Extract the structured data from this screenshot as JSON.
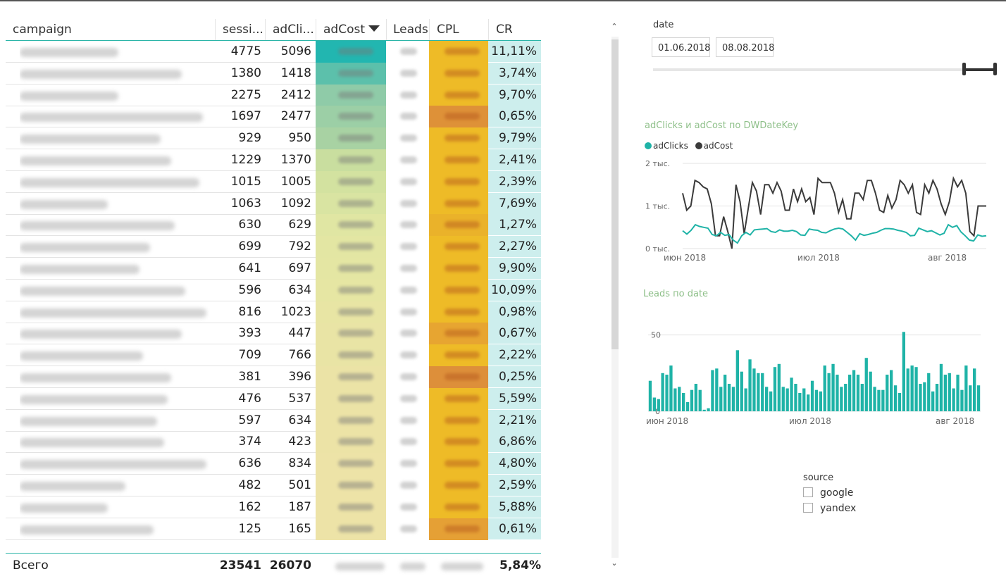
{
  "table": {
    "headers": {
      "campaign": "campaign",
      "sessions": "sessi...",
      "adclicks": "adCli...",
      "adcost": "adCost",
      "leads": "Leads",
      "cpl": "CPL",
      "cr": "CR"
    },
    "rows": [
      {
        "sessions": "4775",
        "adclicks": "5096",
        "cr": "11,11%",
        "cost_color": "#22b6b0",
        "cpl_color": "#eebb27"
      },
      {
        "sessions": "1380",
        "adclicks": "1418",
        "cr": "3,74%",
        "cost_color": "#5cc0ab",
        "cpl_color": "#eebb27"
      },
      {
        "sessions": "2275",
        "adclicks": "2412",
        "cr": "9,70%",
        "cost_color": "#8fcba8",
        "cpl_color": "#eebb27"
      },
      {
        "sessions": "1697",
        "adclicks": "2477",
        "cr": "0,65%",
        "cost_color": "#9ccfa6",
        "cpl_color": "#de9138"
      },
      {
        "sessions": "929",
        "adclicks": "950",
        "cr": "9,79%",
        "cost_color": "#a8d2a3",
        "cpl_color": "#eebb27"
      },
      {
        "sessions": "1229",
        "adclicks": "1370",
        "cr": "2,41%",
        "cost_color": "#c9de9f",
        "cpl_color": "#eebb27"
      },
      {
        "sessions": "1015",
        "adclicks": "1005",
        "cr": "2,39%",
        "cost_color": "#d3e2a0",
        "cpl_color": "#eebb27"
      },
      {
        "sessions": "1063",
        "adclicks": "1092",
        "cr": "7,69%",
        "cost_color": "#d9e4a2",
        "cpl_color": "#eebb27"
      },
      {
        "sessions": "630",
        "adclicks": "629",
        "cr": "1,27%",
        "cost_color": "#e0e6a3",
        "cpl_color": "#eab22a"
      },
      {
        "sessions": "699",
        "adclicks": "792",
        "cr": "2,27%",
        "cost_color": "#e3e6a3",
        "cpl_color": "#eebb27"
      },
      {
        "sessions": "641",
        "adclicks": "697",
        "cr": "9,90%",
        "cost_color": "#e4e6a3",
        "cpl_color": "#eebb27"
      },
      {
        "sessions": "596",
        "adclicks": "634",
        "cr": "10,09%",
        "cost_color": "#e6e6a3",
        "cpl_color": "#eebb27"
      },
      {
        "sessions": "816",
        "adclicks": "1023",
        "cr": "0,98%",
        "cost_color": "#e8e5a4",
        "cpl_color": "#eebb27"
      },
      {
        "sessions": "393",
        "adclicks": "447",
        "cr": "0,67%",
        "cost_color": "#e9e4a5",
        "cpl_color": "#e7a531"
      },
      {
        "sessions": "709",
        "adclicks": "766",
        "cr": "2,22%",
        "cost_color": "#e9e4a5",
        "cpl_color": "#eebb27"
      },
      {
        "sessions": "381",
        "adclicks": "396",
        "cr": "0,25%",
        "cost_color": "#ebe3a6",
        "cpl_color": "#dd8f3a"
      },
      {
        "sessions": "476",
        "adclicks": "537",
        "cr": "5,59%",
        "cost_color": "#ebe3a6",
        "cpl_color": "#eebb27"
      },
      {
        "sessions": "597",
        "adclicks": "634",
        "cr": "2,21%",
        "cost_color": "#ece3a6",
        "cpl_color": "#eebb27"
      },
      {
        "sessions": "374",
        "adclicks": "423",
        "cr": "6,86%",
        "cost_color": "#ece3a6",
        "cpl_color": "#eebb27"
      },
      {
        "sessions": "636",
        "adclicks": "834",
        "cr": "4,80%",
        "cost_color": "#ede3a7",
        "cpl_color": "#eebb27"
      },
      {
        "sessions": "482",
        "adclicks": "501",
        "cr": "2,59%",
        "cost_color": "#ede3a7",
        "cpl_color": "#eebb27"
      },
      {
        "sessions": "162",
        "adclicks": "187",
        "cr": "5,88%",
        "cost_color": "#ede3a7",
        "cpl_color": "#eebb27"
      },
      {
        "sessions": "125",
        "adclicks": "165",
        "cr": "0,61%",
        "cost_color": "#ede3a7",
        "cpl_color": "#e5a035"
      }
    ],
    "total": {
      "label": "Всего",
      "sessions": "23541",
      "adclicks": "26070",
      "cr": "5,84%"
    }
  },
  "date_slicer": {
    "label": "date",
    "start": "01.06.2018",
    "end": "08.08.2018"
  },
  "source_slicer": {
    "label": "source",
    "options": [
      {
        "label": "google",
        "checked": false
      },
      {
        "label": "yandex",
        "checked": false
      }
    ]
  },
  "colors": {
    "teal": "#1fb3a7",
    "dark": "#3b3b3b",
    "title_green": "#8fc08a",
    "cr_bg": "#cdeeed"
  },
  "chart_data": [
    {
      "type": "line",
      "title": "adClicks и adCost по DWDateKey",
      "x_ticks": [
        "июн 2018",
        "июл 2018",
        "авг 2018"
      ],
      "y_ticks": [
        "0 тыс.",
        "1 тыс.",
        "2 тыс."
      ],
      "ylim": [
        0,
        2000
      ],
      "grid": true,
      "legend": "top-left",
      "series": [
        {
          "name": "adClicks",
          "color": "#1fb3a7",
          "values": [
            420,
            340,
            430,
            560,
            520,
            500,
            480,
            330,
            300,
            380,
            310,
            330,
            200,
            130,
            300,
            380,
            320,
            440,
            450,
            460,
            470,
            400,
            380,
            440,
            410,
            410,
            430,
            400,
            320,
            310,
            460,
            440,
            430,
            380,
            370,
            420,
            460,
            480,
            460,
            380,
            300,
            200,
            350,
            310,
            330,
            360,
            380,
            430,
            470,
            470,
            460,
            430,
            410,
            380,
            300,
            310,
            480,
            440,
            400,
            420,
            370,
            320,
            360,
            560,
            500,
            540,
            390,
            300,
            200,
            180,
            320,
            290,
            300
          ]
        },
        {
          "name": "adCost",
          "color": "#3b3b3b",
          "values": [
            1300,
            900,
            1000,
            1600,
            1550,
            1450,
            1400,
            1050,
            300,
            300,
            750,
            400,
            0,
            1500,
            1100,
            350,
            950,
            1550,
            1350,
            800,
            1500,
            1500,
            1300,
            1550,
            1350,
            900,
            900,
            1400,
            1100,
            1400,
            1100,
            1200,
            800,
            1650,
            1550,
            1550,
            1550,
            1300,
            850,
            1150,
            700,
            700,
            1300,
            1300,
            1150,
            1600,
            1600,
            1300,
            900,
            850,
            1250,
            950,
            1150,
            1600,
            1500,
            1300,
            1500,
            850,
            800,
            1500,
            1300,
            1600,
            1400,
            1050,
            800,
            1100,
            1650,
            1450,
            1600,
            1300,
            400,
            300,
            1000,
            1000,
            1000
          ]
        }
      ]
    },
    {
      "type": "bar",
      "title": "Leads по date",
      "x_ticks": [
        "июн 2018",
        "июл 2018",
        "авг 2018"
      ],
      "y_ticks": [
        "0",
        "50"
      ],
      "ylim": [
        0,
        50
      ],
      "grid": true,
      "series": [
        {
          "name": "Leads",
          "color": "#1fb3a7",
          "values": [
            20,
            9,
            8,
            25,
            24,
            30,
            15,
            16,
            12,
            6,
            14,
            18,
            14,
            1,
            2,
            27,
            28,
            16,
            24,
            18,
            16,
            40,
            26,
            15,
            34,
            28,
            25,
            25,
            16,
            13,
            29,
            31,
            16,
            15,
            22,
            18,
            12,
            15,
            11,
            20,
            14,
            13,
            30,
            25,
            31,
            24,
            16,
            18,
            24,
            27,
            24,
            18,
            35,
            26,
            16,
            14,
            14,
            24,
            27,
            17,
            12,
            52,
            28,
            30,
            29,
            18,
            19,
            25,
            13,
            18,
            31,
            24,
            25,
            15,
            24,
            14,
            30,
            17,
            28,
            17
          ]
        }
      ]
    }
  ]
}
